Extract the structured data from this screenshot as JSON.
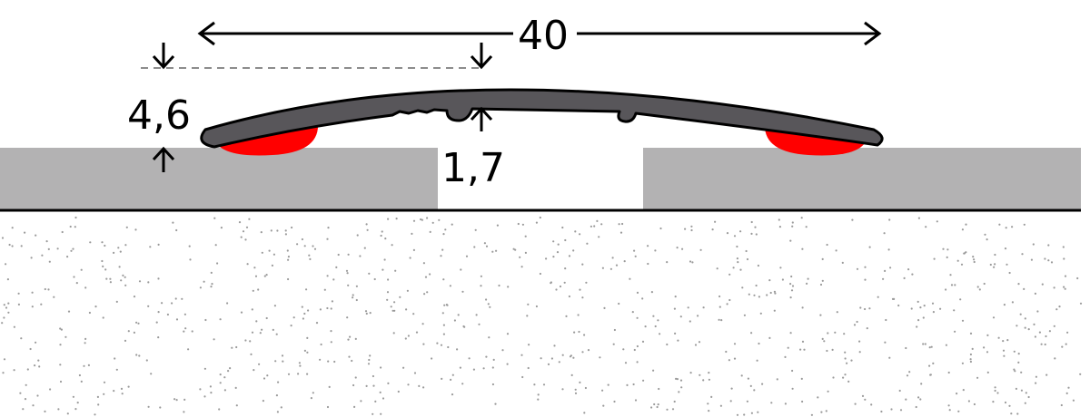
{
  "dimensions": {
    "width": "40",
    "height": "4,6",
    "thickness": "1,7"
  },
  "colors": {
    "profile": "#58565a",
    "adhesive": "#ff0000",
    "board": "#b3b2b3",
    "substrate_dots": "#9a9a9a",
    "outline": "#000000"
  }
}
